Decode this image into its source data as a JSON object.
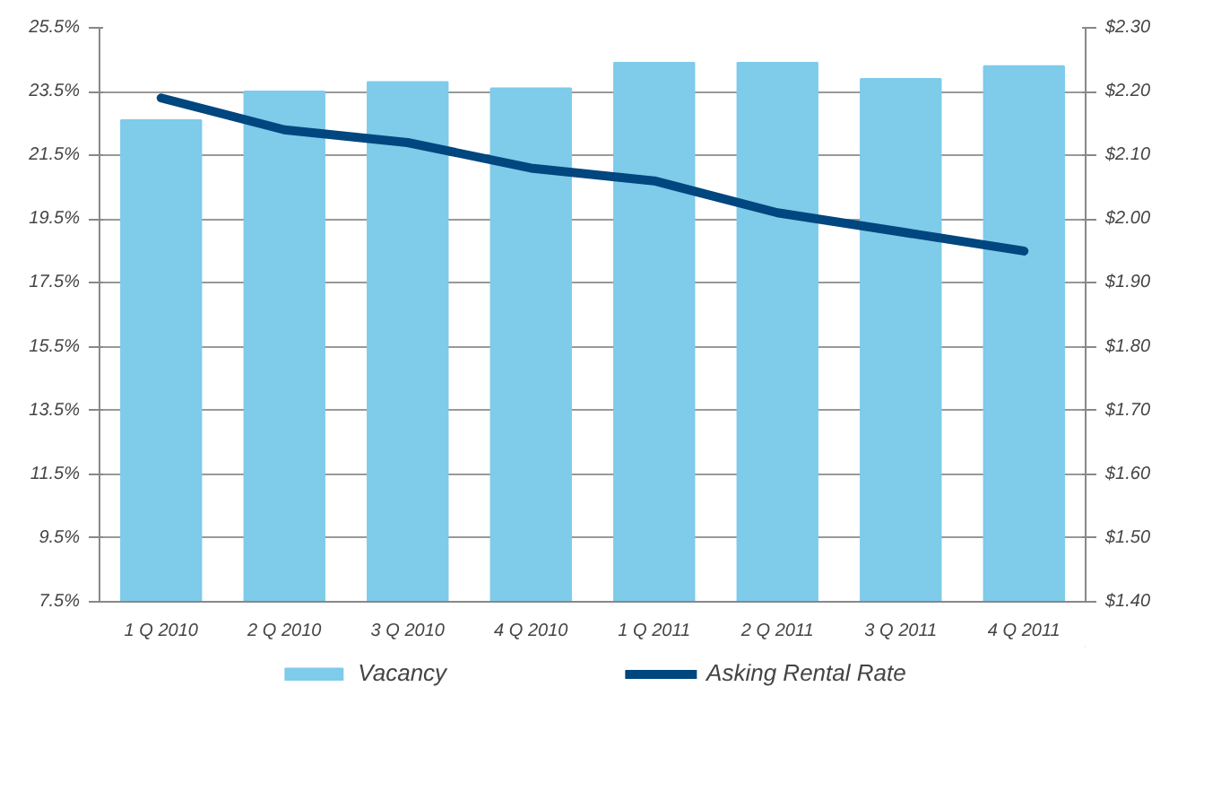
{
  "chart_data": {
    "type": "bar",
    "categories": [
      "1 Q 2010",
      "2 Q 2010",
      "3 Q 2010",
      "4 Q 2010",
      "1 Q 2011",
      "2 Q 2011",
      "3 Q 2011",
      "4 Q 2011"
    ],
    "series": [
      {
        "name": "Vacancy",
        "color": "#7ecbea",
        "values": [
          22.6,
          23.5,
          23.8,
          23.6,
          24.4,
          24.4,
          23.9,
          24.3
        ]
      },
      {
        "name": "Asking Rental Rate",
        "type": "line",
        "axis": "y2",
        "color": "#00467f",
        "values": [
          2.19,
          2.14,
          2.12,
          2.08,
          2.06,
          2.01,
          1.98,
          1.95
        ]
      }
    ],
    "ylim": [
      7.5,
      25.5
    ],
    "yticks": [
      {
        "value": 7.5,
        "label": "7.5%"
      },
      {
        "value": 9.5,
        "label": "9.5%"
      },
      {
        "value": 11.5,
        "label": "11.5%"
      },
      {
        "value": 13.5,
        "label": "13.5%"
      },
      {
        "value": 15.5,
        "label": "15.5%"
      },
      {
        "value": 17.5,
        "label": "17.5%"
      },
      {
        "value": 19.5,
        "label": "19.5%"
      },
      {
        "value": 21.5,
        "label": "21.5%"
      },
      {
        "value": 23.5,
        "label": "23.5%"
      },
      {
        "value": 25.5,
        "label": "25.5%"
      }
    ],
    "y2lim": [
      1.4,
      2.3
    ],
    "y2ticks": [
      {
        "value": 1.4,
        "label": "$1.40"
      },
      {
        "value": 1.5,
        "label": "$1.50"
      },
      {
        "value": 1.6,
        "label": "$1.60"
      },
      {
        "value": 1.7,
        "label": "$1.70"
      },
      {
        "value": 1.8,
        "label": "$1.80"
      },
      {
        "value": 1.9,
        "label": "$1.90"
      },
      {
        "value": 2.0,
        "label": "$2.00"
      },
      {
        "value": 2.1,
        "label": "$2.10"
      },
      {
        "value": 2.2,
        "label": "$2.20"
      },
      {
        "value": 2.3,
        "label": "$2.30"
      }
    ],
    "grid": "y",
    "legend": "bottom",
    "line_style": "solid"
  }
}
